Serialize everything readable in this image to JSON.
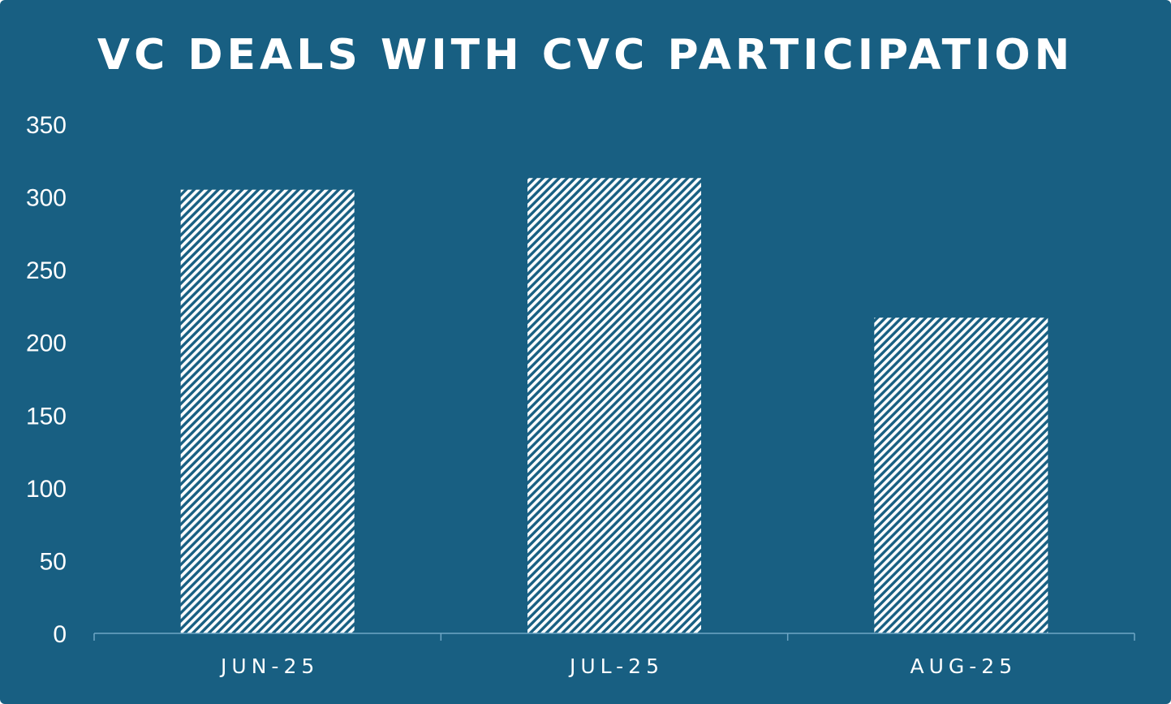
{
  "chart_data": {
    "type": "bar",
    "title": "VC DEALS WITH CVC PARTICIPATION",
    "categories": [
      "JUN-25",
      "JUL-25",
      "AUG-25"
    ],
    "values": [
      305,
      313,
      217
    ],
    "ylim": [
      0,
      350
    ],
    "yticks": [
      0,
      50,
      100,
      150,
      200,
      250,
      300,
      350
    ],
    "xlabel": "",
    "ylabel": "",
    "grid": false,
    "legend": "none",
    "bar_fill": "diagonal-hatch",
    "colors": {
      "background": "#185f82",
      "bar_pattern": "#ffffff",
      "axis_line": "#6ea6c4",
      "text": "#ffffff"
    }
  }
}
